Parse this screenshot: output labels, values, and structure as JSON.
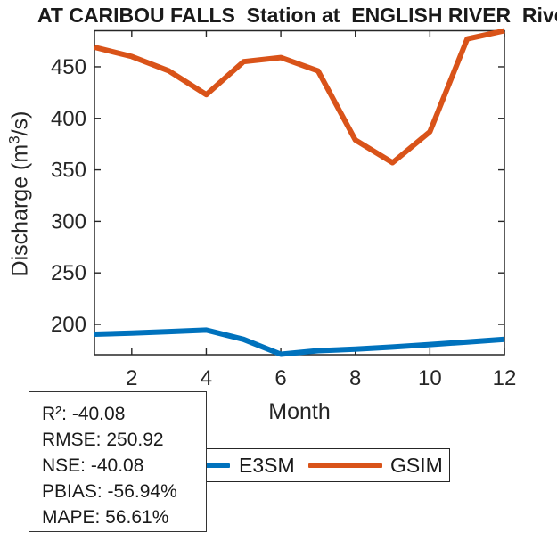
{
  "chart_data": {
    "type": "line",
    "title": "AT CARIBOU FALLS  Station at  ENGLISH RIVER  River",
    "xlabel": "Month",
    "ylabel": "Discharge (m³/s)",
    "ylabel_parts": {
      "pre": "Discharge (m",
      "sup": "3",
      "post": "/s)"
    },
    "x": [
      1,
      2,
      3,
      4,
      5,
      6,
      7,
      8,
      9,
      10,
      11,
      12
    ],
    "series": [
      {
        "name": "E3SM",
        "color": "#0072BD",
        "values": [
          190.5,
          191.5,
          193,
          194.5,
          185.5,
          171,
          174.5,
          176,
          178,
          180.5,
          183,
          185.5
        ]
      },
      {
        "name": "GSIM",
        "color": "#D95319",
        "values": [
          469,
          460,
          446,
          423,
          455,
          459,
          446,
          379,
          357,
          387,
          477,
          485
        ]
      }
    ],
    "xlim": [
      1,
      12
    ],
    "ylim": [
      170.6,
      485
    ],
    "xticks": [
      2,
      4,
      6,
      8,
      10,
      12
    ],
    "yticks": [
      200,
      250,
      300,
      350,
      400,
      450
    ],
    "grid": false,
    "legend_position": "south",
    "axis_color": "#262626"
  },
  "legend": {
    "entries": [
      {
        "label": "E3SM",
        "color": "#0072BD"
      },
      {
        "label": "GSIM",
        "color": "#D95319"
      }
    ]
  },
  "stats": {
    "lines": [
      "R²: -40.08",
      "RMSE: 250.92",
      "NSE: -40.08",
      "PBIAS: -56.94%",
      "MAPE: 56.61%"
    ]
  }
}
